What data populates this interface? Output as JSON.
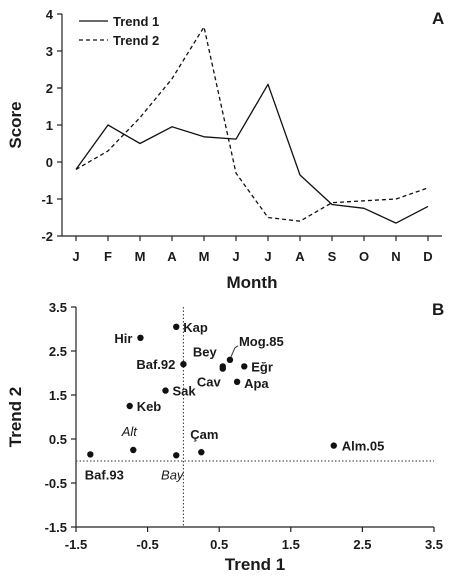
{
  "chart_data": [
    {
      "type": "line",
      "panel": "A",
      "xlabel": "Month",
      "ylabel": "Score",
      "categories": [
        "J",
        "F",
        "M",
        "A",
        "M",
        "J",
        "J",
        "A",
        "S",
        "O",
        "N",
        "D"
      ],
      "ylim": [
        -2,
        4
      ],
      "yticks": [
        -2,
        -1,
        0,
        1,
        2,
        3,
        4
      ],
      "legend_position": "top-left",
      "series": [
        {
          "name": "Trend 1",
          "style": "solid",
          "values": [
            -0.2,
            1.0,
            0.5,
            0.95,
            0.68,
            0.62,
            2.1,
            -0.35,
            -1.15,
            -1.25,
            -1.65,
            -1.2
          ]
        },
        {
          "name": "Trend 2",
          "style": "dashed",
          "values": [
            -0.2,
            0.3,
            1.2,
            2.25,
            3.65,
            -0.3,
            -1.5,
            -1.6,
            -1.1,
            -1.05,
            -1.0,
            -0.7
          ]
        }
      ]
    },
    {
      "type": "scatter",
      "panel": "B",
      "xlabel": "Trend 1",
      "ylabel": "Trend 2",
      "xlim": [
        -1.5,
        3.5
      ],
      "ylim": [
        -1.5,
        3.5
      ],
      "xticks": [
        -1.5,
        -0.5,
        0.5,
        1.5,
        2.5,
        3.5
      ],
      "yticks": [
        -1.5,
        -0.5,
        0.5,
        1.5,
        2.5,
        3.5
      ],
      "xtick_labels": [
        "-1.5",
        "-0.5",
        "0.5",
        "1.5",
        "2.5",
        "3.5"
      ],
      "ytick_labels": [
        "-1.5",
        "-0.5",
        "0.5",
        "1.5",
        "2.5",
        "3.5"
      ],
      "reference_lines": {
        "x": 0,
        "y": 0,
        "style": "dotted"
      },
      "points": [
        {
          "label": "Kap",
          "x": -0.1,
          "y": 3.05
        },
        {
          "label": "Hir",
          "x": -0.6,
          "y": 2.8
        },
        {
          "label": "Mog.85",
          "x": 0.65,
          "y": 2.3
        },
        {
          "label": "Bey",
          "x": 0.55,
          "y": 2.15
        },
        {
          "label": "Baf.92",
          "x": 0.0,
          "y": 2.2
        },
        {
          "label": "Eğr",
          "x": 0.85,
          "y": 2.15
        },
        {
          "label": "Cav",
          "x": 0.55,
          "y": 2.1
        },
        {
          "label": "Apa",
          "x": 0.75,
          "y": 1.8
        },
        {
          "label": "Sak",
          "x": -0.25,
          "y": 1.6
        },
        {
          "label": "Keb",
          "x": -0.75,
          "y": 1.25
        },
        {
          "label": "Alm.05",
          "x": 2.1,
          "y": 0.35
        },
        {
          "label": "Alt",
          "x": -0.7,
          "y": 0.25,
          "italic": true
        },
        {
          "label": "Çam",
          "x": 0.25,
          "y": 0.2
        },
        {
          "label": "Bay",
          "x": -0.1,
          "y": 0.13,
          "italic": true
        },
        {
          "label": "Baf.93",
          "x": -1.3,
          "y": 0.15
        }
      ]
    }
  ]
}
